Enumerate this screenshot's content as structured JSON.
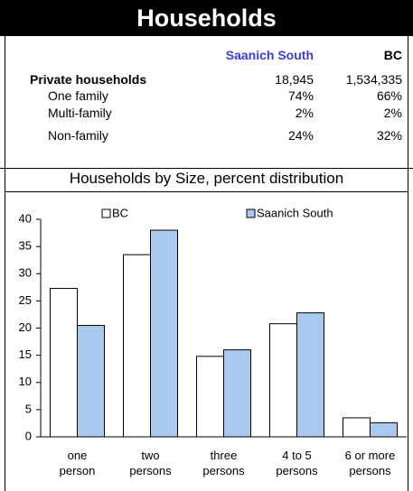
{
  "header": {
    "title": "Households"
  },
  "table": {
    "columns": [
      "Saanich South",
      "BC"
    ],
    "rows": [
      [
        "Private households",
        "18,945",
        "1,534,335"
      ],
      [
        "One family",
        "74%",
        "66%"
      ],
      [
        "Multi-family",
        "2%",
        "2%"
      ],
      [
        "Non-family",
        "24%",
        "32%"
      ]
    ]
  },
  "chart_data": {
    "type": "bar",
    "title": "Households by Size, percent distribution",
    "categories": [
      "one person",
      "two persons",
      "three persons",
      "4 to 5 persons",
      "6 or  more persons"
    ],
    "series": [
      {
        "name": "BC",
        "color": "#ffffff",
        "values": [
          27.3,
          33.5,
          14.8,
          20.8,
          3.5
        ]
      },
      {
        "name": "Saanich South",
        "color": "#a9c9ee",
        "values": [
          20.5,
          38,
          16,
          22.8,
          2.6
        ]
      }
    ],
    "ylim": [
      0,
      40
    ],
    "yticks": [
      0,
      5,
      10,
      15,
      20,
      25,
      30,
      35,
      40
    ],
    "legend": "top"
  }
}
